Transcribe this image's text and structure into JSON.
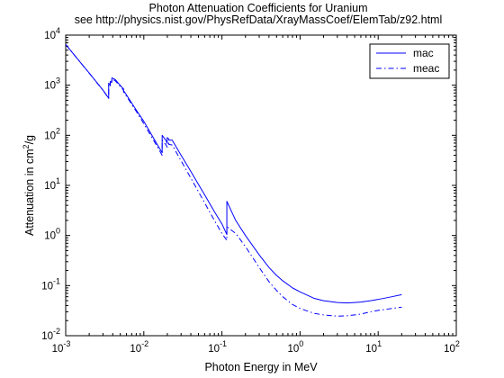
{
  "figure": {
    "background": "#ffffff",
    "axes_color": "#000000",
    "line_color": "#0000ff"
  },
  "chart_data": {
    "type": "line",
    "title": "Photon Attenuation Coefficients for Uranium",
    "subtitle": "see http://physics.nist.gov/PhysRefData/XrayMassCoef/ElemTab/z92.html",
    "xlabel": "Photon Energy in MeV",
    "ylabel": {
      "prefix": "Attenuation in cm",
      "sup": "2",
      "suffix": "/g"
    },
    "xscale": "log",
    "yscale": "log",
    "xlim": [
      0.001,
      100
    ],
    "ylim": [
      0.01,
      10000
    ],
    "x_ticks": [
      {
        "value": 0.001,
        "base": "10",
        "exp": "-3"
      },
      {
        "value": 0.01,
        "base": "10",
        "exp": "-2"
      },
      {
        "value": 0.1,
        "base": "10",
        "exp": "-1"
      },
      {
        "value": 1,
        "base": "10",
        "exp": "0"
      },
      {
        "value": 10,
        "base": "10",
        "exp": "1"
      },
      {
        "value": 100,
        "base": "10",
        "exp": "2"
      }
    ],
    "y_ticks": [
      {
        "value": 0.01,
        "base": "10",
        "exp": "-2"
      },
      {
        "value": 0.1,
        "base": "10",
        "exp": "-1"
      },
      {
        "value": 1,
        "base": "10",
        "exp": "0"
      },
      {
        "value": 10,
        "base": "10",
        "exp": "1"
      },
      {
        "value": 100,
        "base": "10",
        "exp": "2"
      },
      {
        "value": 1000,
        "base": "10",
        "exp": "3"
      },
      {
        "value": 10000,
        "base": "10",
        "exp": "4"
      }
    ],
    "grid": false,
    "legend_position": "top-right",
    "series": [
      {
        "name": "mac",
        "style": "solid",
        "color": "#0000ff",
        "points": [
          [
            0.001,
            6500
          ],
          [
            0.0015,
            3000
          ],
          [
            0.002,
            1750
          ],
          [
            0.003,
            800
          ],
          [
            0.00355,
            550
          ],
          [
            0.00355,
            1100
          ],
          [
            0.00372,
            1000
          ],
          [
            0.00372,
            1200
          ],
          [
            0.0039,
            1150
          ],
          [
            0.0039,
            1400
          ],
          [
            0.0043,
            1300
          ],
          [
            0.0052,
            920
          ],
          [
            0.0055,
            850
          ],
          [
            0.0055,
            780
          ],
          [
            0.006,
            640
          ],
          [
            0.008,
            320
          ],
          [
            0.01,
            190
          ],
          [
            0.015,
            64
          ],
          [
            0.01717,
            45
          ],
          [
            0.01717,
            100
          ],
          [
            0.0193,
            78
          ],
          [
            0.0199,
            70
          ],
          [
            0.0199,
            90
          ],
          [
            0.0209,
            84
          ],
          [
            0.0209,
            80
          ],
          [
            0.0231,
            80
          ],
          [
            0.03,
            40
          ],
          [
            0.04,
            19
          ],
          [
            0.05,
            10.5
          ],
          [
            0.06,
            6.5
          ],
          [
            0.08,
            3.0
          ],
          [
            0.1,
            1.7
          ],
          [
            0.1156,
            1.05
          ],
          [
            0.1156,
            4.8
          ],
          [
            0.15,
            2.0
          ],
          [
            0.2,
            1.0
          ],
          [
            0.3,
            0.41
          ],
          [
            0.4,
            0.23
          ],
          [
            0.5,
            0.16
          ],
          [
            0.6,
            0.125
          ],
          [
            0.8,
            0.09
          ],
          [
            1.0,
            0.075
          ],
          [
            1.5,
            0.056
          ],
          [
            2,
            0.05
          ],
          [
            3,
            0.046
          ],
          [
            4,
            0.045
          ],
          [
            5,
            0.046
          ],
          [
            6,
            0.047
          ],
          [
            8,
            0.05
          ],
          [
            10,
            0.053
          ],
          [
            15,
            0.06
          ],
          [
            20,
            0.066
          ]
        ]
      },
      {
        "name": "meac",
        "style": "dash-dot",
        "color": "#0000ff",
        "points": [
          [
            0.001,
            6500
          ],
          [
            0.0015,
            3000
          ],
          [
            0.002,
            1740
          ],
          [
            0.003,
            790
          ],
          [
            0.00355,
            545
          ],
          [
            0.00355,
            1050
          ],
          [
            0.00372,
            970
          ],
          [
            0.00372,
            1150
          ],
          [
            0.0039,
            1100
          ],
          [
            0.0039,
            1330
          ],
          [
            0.0043,
            1230
          ],
          [
            0.0052,
            870
          ],
          [
            0.0055,
            800
          ],
          [
            0.0055,
            740
          ],
          [
            0.006,
            600
          ],
          [
            0.008,
            300
          ],
          [
            0.01,
            170
          ],
          [
            0.015,
            58
          ],
          [
            0.01717,
            40
          ],
          [
            0.01717,
            80
          ],
          [
            0.0193,
            64
          ],
          [
            0.0199,
            58
          ],
          [
            0.0199,
            75
          ],
          [
            0.0209,
            70
          ],
          [
            0.0209,
            66
          ],
          [
            0.0231,
            64
          ],
          [
            0.03,
            31
          ],
          [
            0.04,
            14
          ],
          [
            0.05,
            7.5
          ],
          [
            0.06,
            4.5
          ],
          [
            0.08,
            2.0
          ],
          [
            0.1,
            1.1
          ],
          [
            0.1156,
            0.8
          ],
          [
            0.1156,
            1.5
          ],
          [
            0.15,
            1.1
          ],
          [
            0.2,
            0.6
          ],
          [
            0.3,
            0.23
          ],
          [
            0.4,
            0.12
          ],
          [
            0.5,
            0.08
          ],
          [
            0.6,
            0.06
          ],
          [
            0.8,
            0.042
          ],
          [
            1.0,
            0.035
          ],
          [
            1.5,
            0.028
          ],
          [
            2,
            0.026
          ],
          [
            3,
            0.0245
          ],
          [
            4,
            0.025
          ],
          [
            5,
            0.026
          ],
          [
            6,
            0.027
          ],
          [
            8,
            0.03
          ],
          [
            10,
            0.032
          ],
          [
            15,
            0.035
          ],
          [
            20,
            0.037
          ]
        ]
      }
    ]
  }
}
